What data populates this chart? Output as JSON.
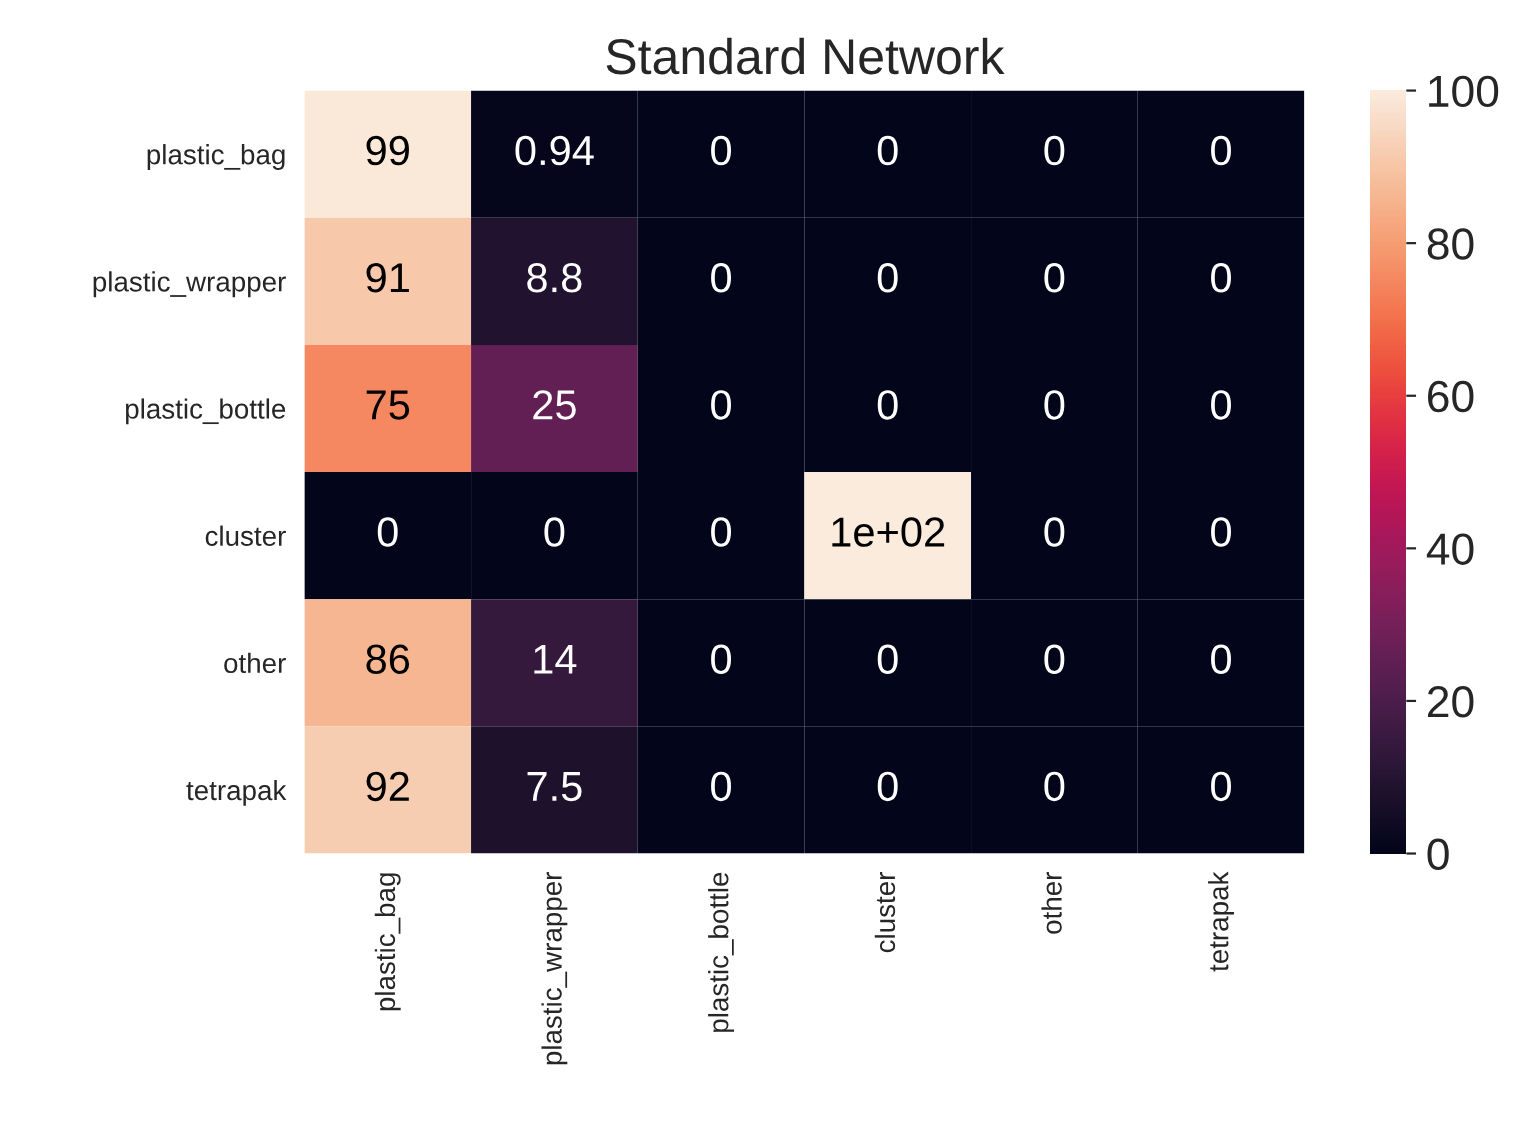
{
  "chart_data": {
    "type": "heatmap",
    "title": "Standard Network",
    "categories": [
      "plastic_bag",
      "plastic_wrapper",
      "plastic_bottle",
      "cluster",
      "other",
      "tetrapak"
    ],
    "y_categories": [
      "plastic_bag",
      "plastic_wrapper",
      "plastic_bottle",
      "cluster",
      "other",
      "tetrapak"
    ],
    "cells": [
      [
        99,
        0.94,
        0,
        0,
        0,
        0
      ],
      [
        91,
        8.8,
        0,
        0,
        0,
        0
      ],
      [
        75,
        25,
        0,
        0,
        0,
        0
      ],
      [
        0,
        0,
        0,
        100,
        0,
        0
      ],
      [
        86,
        14,
        0,
        0,
        0,
        0
      ],
      [
        92,
        7.5,
        0,
        0,
        0,
        0
      ]
    ],
    "cell_labels": [
      [
        "99",
        "0.94",
        "0",
        "0",
        "0",
        "0"
      ],
      [
        "91",
        "8.8",
        "0",
        "0",
        "0",
        "0"
      ],
      [
        "75",
        "25",
        "0",
        "0",
        "0",
        "0"
      ],
      [
        "0",
        "0",
        "0",
        "1e+02",
        "0",
        "0"
      ],
      [
        "86",
        "14",
        "0",
        "0",
        "0",
        "0"
      ],
      [
        "92",
        "7.5",
        "0",
        "0",
        "0",
        "0"
      ]
    ],
    "clim": [
      0,
      100
    ],
    "cticks": [
      0,
      20,
      40,
      60,
      80,
      100
    ]
  }
}
